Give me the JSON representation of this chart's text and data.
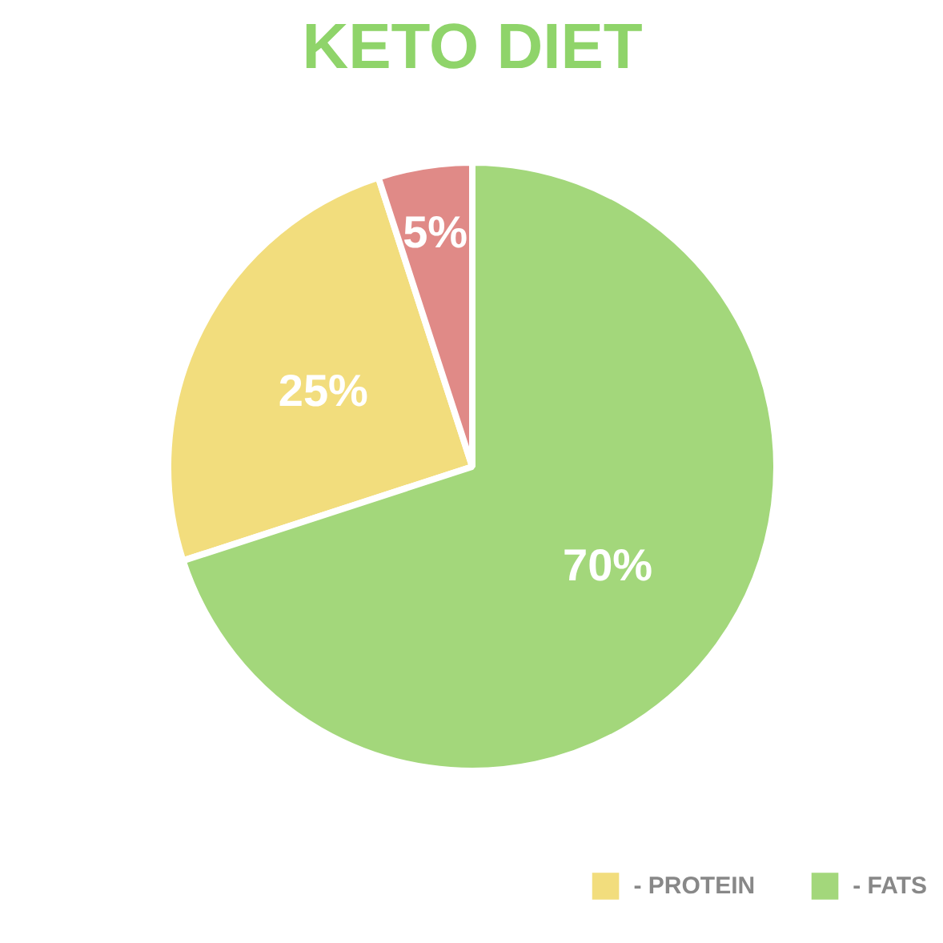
{
  "chart_data": {
    "type": "pie",
    "title": "KETO DIET",
    "categories": [
      "- PROTEIN",
      null,
      "- FATS"
    ],
    "values": [
      25,
      5,
      70
    ],
    "colors": [
      "#f2dd7d",
      "#e08a87",
      "#a3d77b"
    ],
    "value_labels": [
      "25%",
      "5%",
      "70%"
    ],
    "legend": "bottom right"
  }
}
